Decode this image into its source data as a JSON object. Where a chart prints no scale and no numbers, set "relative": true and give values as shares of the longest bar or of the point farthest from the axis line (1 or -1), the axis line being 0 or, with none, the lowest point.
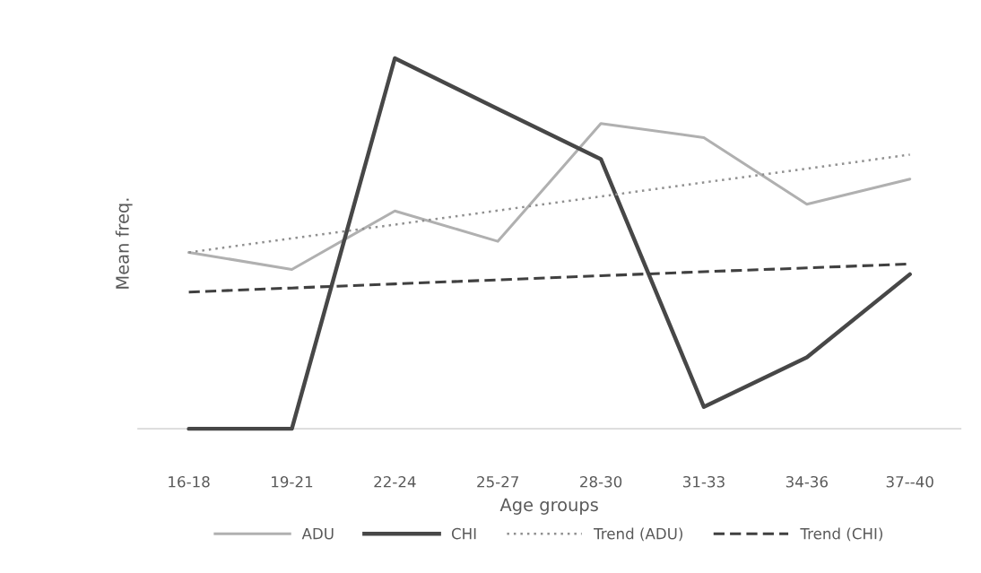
{
  "chart_data": {
    "type": "line",
    "xlabel": "Age groups",
    "ylabel": "Mean freq.",
    "relative": true,
    "legend": "bottom",
    "categories": [
      "16-18",
      "19-21",
      "22-24",
      "25-27",
      "28-30",
      "31-33",
      "34-36",
      "37--40"
    ],
    "series": [
      {
        "name": "ADU",
        "color": "#b0b0b0",
        "line_style": "solid",
        "values": [
          0.476,
          0.43,
          0.588,
          0.506,
          0.824,
          0.786,
          0.606,
          0.674
        ]
      },
      {
        "name": "CHI",
        "color": "#474747",
        "line_style": "solid",
        "values": [
          0.0,
          0.0,
          1.0,
          0.863,
          0.728,
          0.059,
          0.193,
          0.417
        ]
      },
      {
        "name": "Trend (ADU)",
        "color": "#909090",
        "line_style": "dotted",
        "values": [
          0.476,
          0.514,
          0.551,
          0.589,
          0.627,
          0.665,
          0.702,
          0.74
        ]
      },
      {
        "name": "Trend (CHI)",
        "color": "#404040",
        "line_style": "dashed",
        "values": [
          0.369,
          0.38,
          0.391,
          0.402,
          0.413,
          0.424,
          0.434,
          0.445
        ]
      }
    ]
  }
}
